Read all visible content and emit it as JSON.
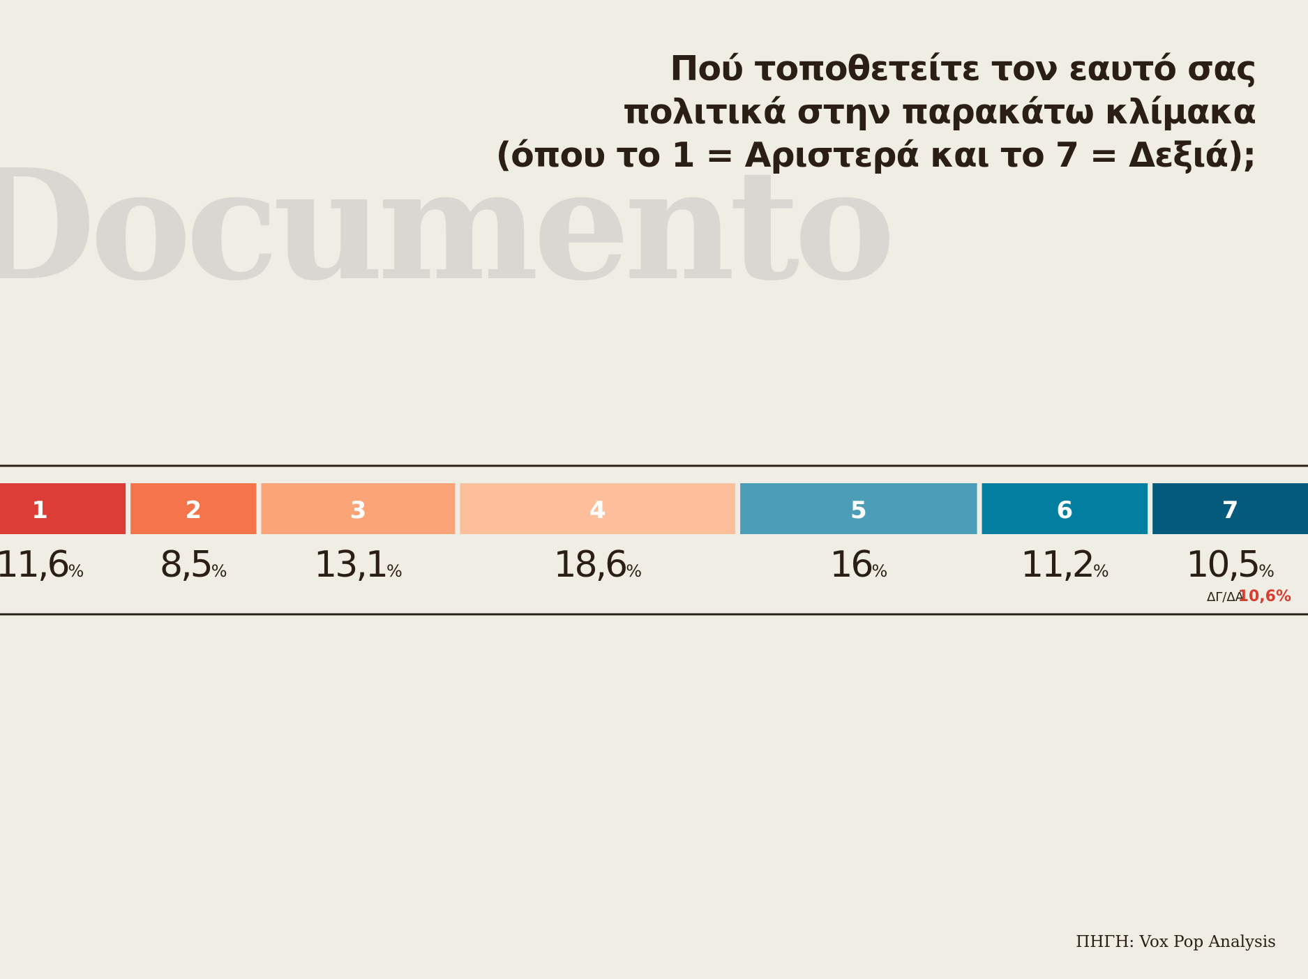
{
  "title_lines": [
    "Πού τοποθετείτε τον εαυτό σας",
    "πολιτικά στην παρακάτω κλίμακα",
    "(όπου το 1 = Αριστερά και το 7 = Δεξιά);"
  ],
  "watermark": "Documento",
  "source": "ΠΗΓΗ: Vox Pop Analysis",
  "note": {
    "label": "ΔΓ/ΔΑ",
    "value": "10,6%",
    "color": "#d63e32"
  },
  "chart_data": {
    "type": "bar",
    "orientation": "horizontal-stacked",
    "categories": [
      "1",
      "2",
      "3",
      "4",
      "5",
      "6",
      "7"
    ],
    "values": [
      11.6,
      8.5,
      13.1,
      18.6,
      16,
      11.2,
      10.5
    ],
    "value_labels": [
      "11,6",
      "8,5",
      "13,1",
      "18,6",
      "16",
      "11,2",
      "10,5"
    ],
    "unit": "%",
    "colors": [
      "#dc3d36",
      "#f4744c",
      "#fba478",
      "#fdbe9b",
      "#4c9eb8",
      "#027ea0",
      "#035a7a"
    ],
    "title": "Πού τοποθετείτε τον εαυτό σας πολιτικά στην παρακάτω κλίμακα (όπου το 1 = Αριστερά και το 7 = Δεξιά);"
  }
}
